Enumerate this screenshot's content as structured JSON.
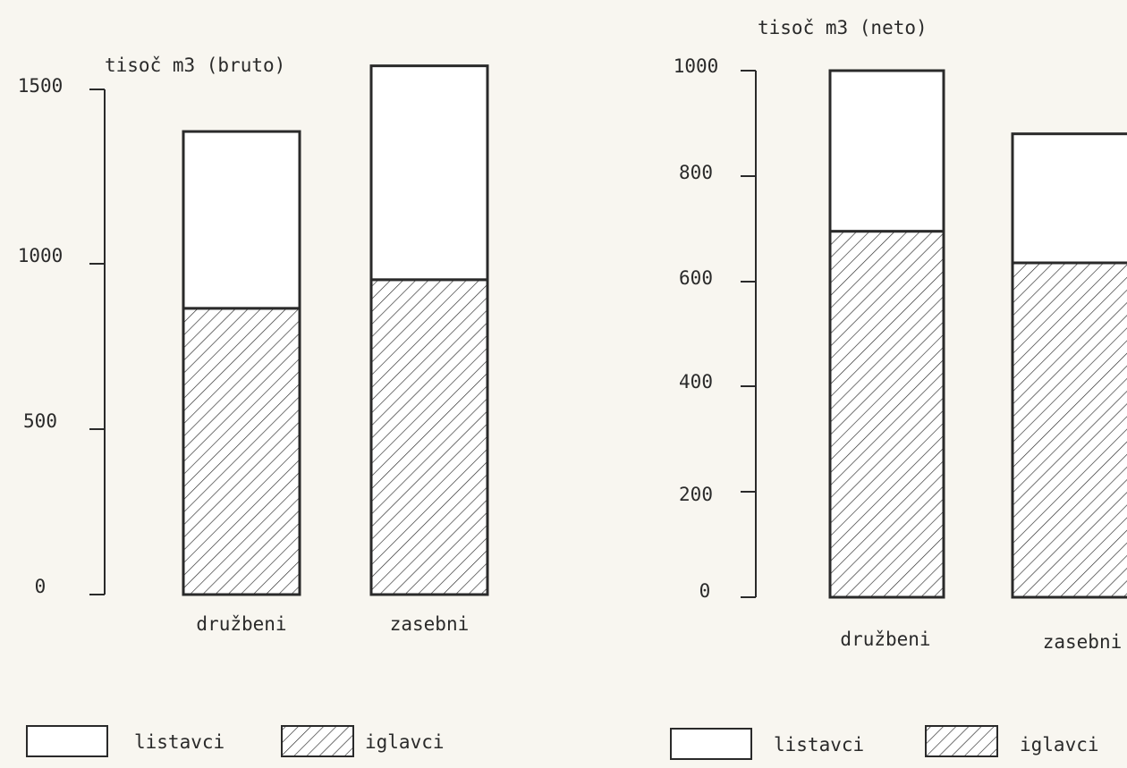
{
  "chart_data": [
    {
      "type": "bar",
      "stacked": true,
      "ylabel": "tisoč m3 (bruto)",
      "categories": [
        "družbeni",
        "zasebni"
      ],
      "yticks": [
        "0",
        "500",
        "1000",
        "1500"
      ],
      "ylim": [
        0,
        1500
      ],
      "series": [
        {
          "name": "iglavci",
          "values": [
            850,
            935
          ],
          "fill": "hatch"
        },
        {
          "name": "listavci",
          "values": [
            525,
            635
          ],
          "fill": "white"
        }
      ],
      "legend": [
        "listavci",
        "iglavci"
      ]
    },
    {
      "type": "bar",
      "stacked": true,
      "ylabel": "tisoč m3 (neto)",
      "categories": [
        "družbeni",
        "zasebni"
      ],
      "yticks": [
        "0",
        "200",
        "400",
        "600",
        "800",
        "1000"
      ],
      "ylim": [
        0,
        1000
      ],
      "series": [
        {
          "name": "iglavci",
          "values": [
            695,
            635
          ],
          "fill": "hatch"
        },
        {
          "name": "listavci",
          "values": [
            305,
            245
          ],
          "fill": "white"
        }
      ],
      "legend": [
        "listavci",
        "iglavci"
      ]
    }
  ],
  "colors": {
    "ink": "#2a2a2a",
    "paper": "#f8f6f0",
    "bar_fill": "#ffffff"
  }
}
